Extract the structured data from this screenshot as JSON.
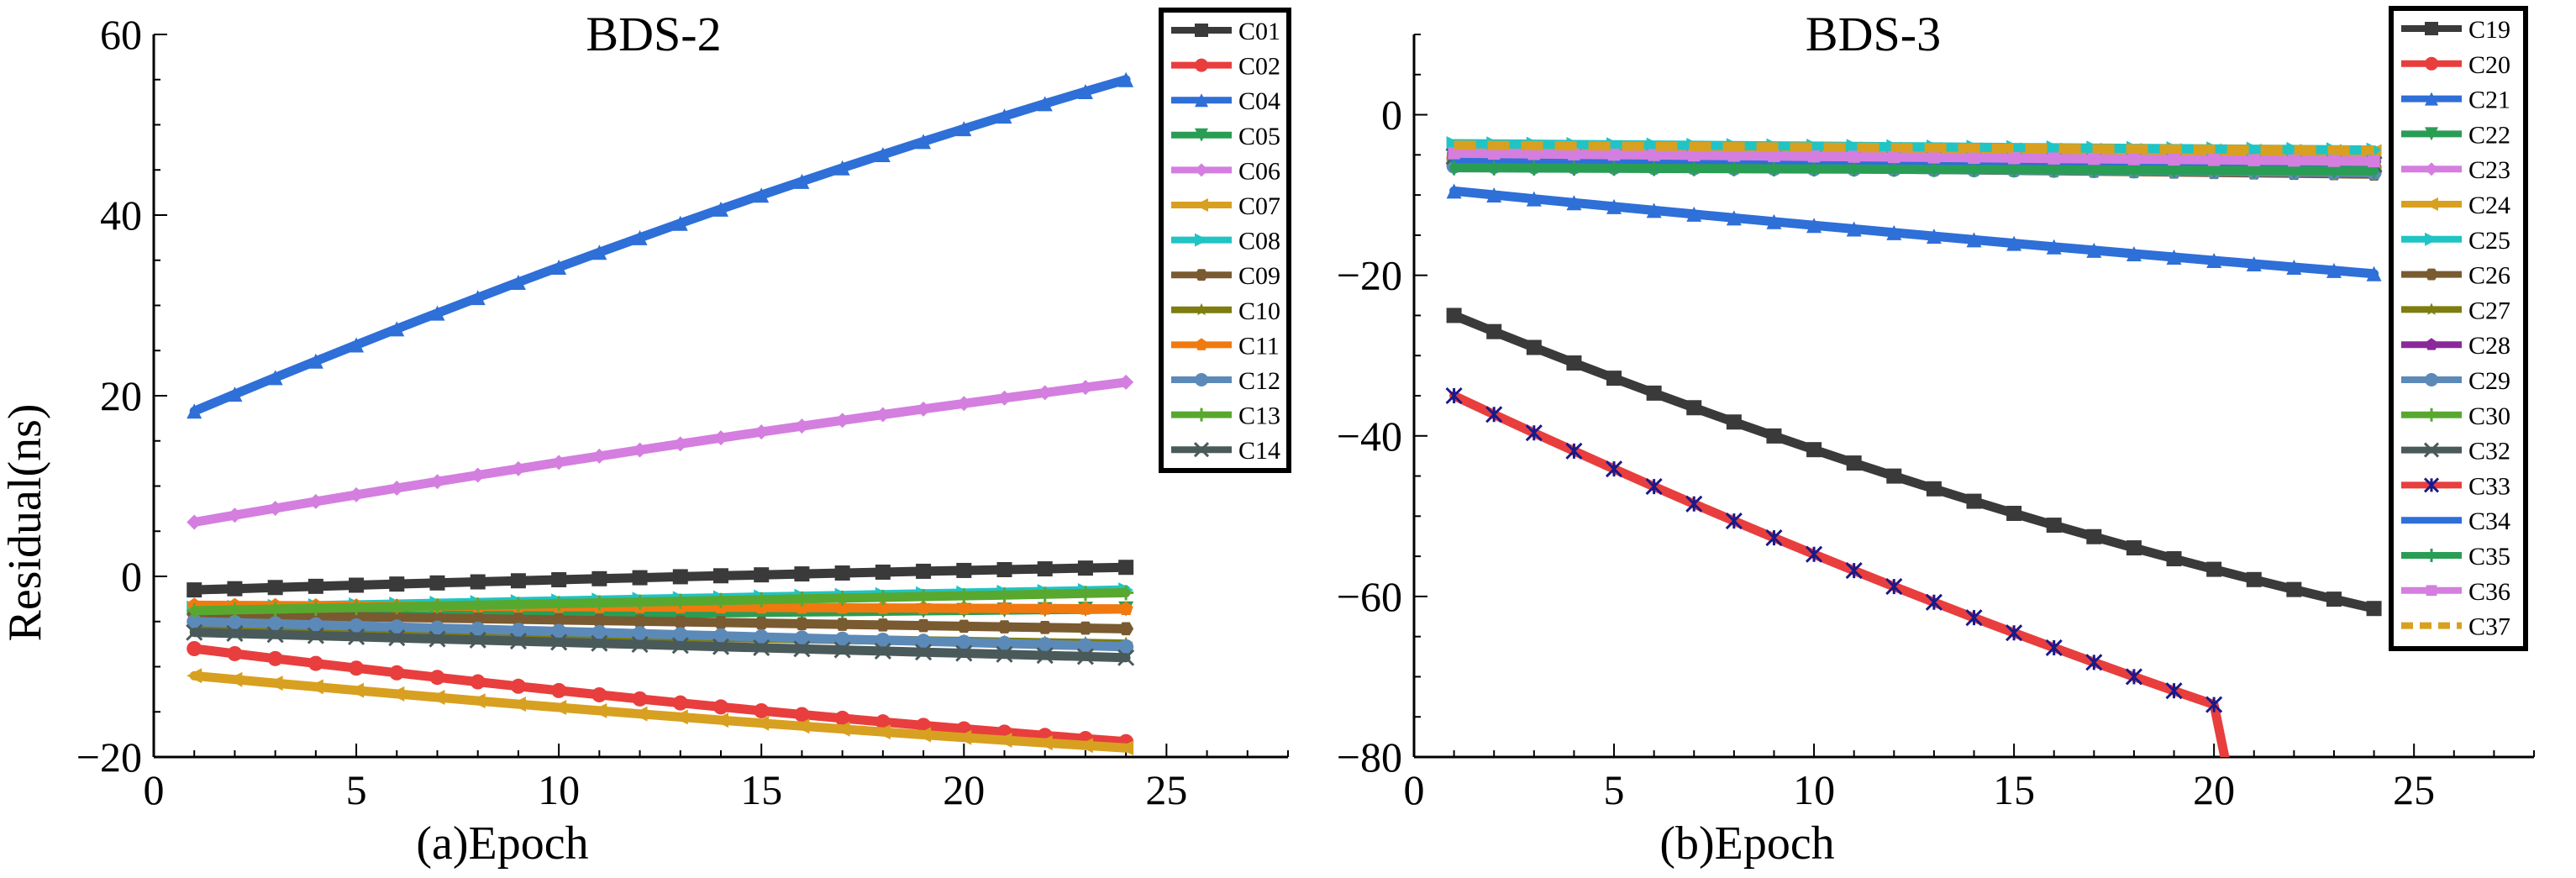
{
  "chart_data": [
    {
      "type": "line",
      "title": "BDS-2",
      "xlabel": "(a)Epoch",
      "ylabel": "Residual(ns)",
      "xlim": [
        0,
        28
      ],
      "ylim": [
        -20,
        60
      ],
      "xticks": [
        0,
        5,
        10,
        15,
        20,
        25
      ],
      "yticks": [
        -20,
        0,
        20,
        40,
        60
      ],
      "ytick_labels": [
        "−20",
        "0",
        "20",
        "40",
        "60"
      ],
      "legend_position": "top-right",
      "series": [
        {
          "name": "C01",
          "color": "#3a3a3a",
          "marker": "square",
          "start": -1.5,
          "end": 1.0,
          "curve": 0.25
        },
        {
          "name": "C02",
          "color": "#e83e3e",
          "marker": "circle",
          "start": -8.0,
          "end": -18.3,
          "curve": -0.25
        },
        {
          "name": "C04",
          "color": "#2e6fd8",
          "marker": "triangle-up",
          "start": 18.3,
          "end": 55.0,
          "curve": 0.18
        },
        {
          "name": "C05",
          "color": "#2a9d55",
          "marker": "triangle-down",
          "start": -4.6,
          "end": -3.6,
          "curve": 0
        },
        {
          "name": "C06",
          "color": "#d47ee0",
          "marker": "diamond",
          "start": 6.0,
          "end": 21.5,
          "curve": 0.15
        },
        {
          "name": "C07",
          "color": "#d8a020",
          "marker": "triangle-left",
          "start": -11.0,
          "end": -19.0,
          "curve": -0.2
        },
        {
          "name": "C08",
          "color": "#20c4c4",
          "marker": "triangle-right",
          "start": -3.5,
          "end": -1.5,
          "curve": 0
        },
        {
          "name": "C09",
          "color": "#7a5a30",
          "marker": "hexagon",
          "start": -4.2,
          "end": -5.8,
          "curve": 0
        },
        {
          "name": "C10",
          "color": "#7d7d10",
          "marker": "star",
          "start": -5.8,
          "end": -7.5,
          "curve": 0
        },
        {
          "name": "C11",
          "color": "#f07a10",
          "marker": "pentagon",
          "start": -3.2,
          "end": -3.6,
          "curve": 0
        },
        {
          "name": "C12",
          "color": "#5c8ab8",
          "marker": "sphere",
          "start": -5.0,
          "end": -7.8,
          "curve": 0
        },
        {
          "name": "C13",
          "color": "#58a830",
          "marker": "plus",
          "start": -3.8,
          "end": -1.8,
          "curve": 0
        },
        {
          "name": "C14",
          "color": "#4a5a5a",
          "marker": "x",
          "start": -6.2,
          "end": -9.0,
          "curve": 0
        }
      ]
    },
    {
      "type": "line",
      "title": "BDS-3",
      "xlabel": "(b)Epoch",
      "ylabel": "",
      "xlim": [
        0,
        28
      ],
      "ylim": [
        -80,
        10
      ],
      "xticks": [
        0,
        5,
        10,
        15,
        20,
        25
      ],
      "yticks": [
        -80,
        -60,
        -40,
        -20,
        0
      ],
      "ytick_labels": [
        "−80",
        "−60",
        "−40",
        "−20",
        "0"
      ],
      "legend_position": "top-right",
      "series": [
        {
          "name": "C19",
          "color": "#3a3a3a",
          "marker": "square",
          "start": -25.0,
          "end": -61.5,
          "curve": -0.28
        },
        {
          "name": "C20",
          "color": "#e83e3e",
          "marker": "circle",
          "start": -5.4,
          "end": -6.6,
          "curve": 0
        },
        {
          "name": "C21",
          "color": "#2e6fd8",
          "marker": "triangle-up",
          "start": -9.5,
          "end": -19.8,
          "curve": -0.1
        },
        {
          "name": "C22",
          "color": "#2a9d55",
          "marker": "triangle-down",
          "start": -5.8,
          "end": -6.8,
          "curve": 0
        },
        {
          "name": "C23",
          "color": "#d47ee0",
          "marker": "diamond",
          "start": -4.2,
          "end": -5.0,
          "curve": 0
        },
        {
          "name": "C24",
          "color": "#d8a020",
          "marker": "triangle-left",
          "start": -4.0,
          "end": -4.6,
          "curve": 0
        },
        {
          "name": "C25",
          "color": "#20c4c4",
          "marker": "triangle-right",
          "start": -3.6,
          "end": -4.4,
          "curve": 0
        },
        {
          "name": "C26",
          "color": "#7a5a30",
          "marker": "hexagon",
          "start": -6.2,
          "end": -7.4,
          "curve": 0
        },
        {
          "name": "C27",
          "color": "#7d7d10",
          "marker": "star",
          "start": -6.0,
          "end": -7.0,
          "curve": 0
        },
        {
          "name": "C28",
          "color": "#8a2a9a",
          "marker": "pentagon",
          "start": -5.0,
          "end": -6.0,
          "curve": 0
        },
        {
          "name": "C29",
          "color": "#5c8ab8",
          "marker": "sphere",
          "start": -6.4,
          "end": -7.2,
          "curve": 0
        },
        {
          "name": "C30",
          "color": "#58a830",
          "marker": "plus",
          "start": -5.6,
          "end": -6.6,
          "curve": 0
        },
        {
          "name": "C32",
          "color": "#4a5a5a",
          "marker": "x",
          "start": -5.2,
          "end": -6.2,
          "curve": 0
        },
        {
          "name": "C33",
          "color": "#e83e3e",
          "marker": "asterisk",
          "start": -35.0,
          "end": -80.0,
          "curve": -0.2,
          "marker_color": "#1a1a8a",
          "xmax": 20
        },
        {
          "name": "C34",
          "color": "#2e6fd8",
          "marker": "none",
          "start": -5.5,
          "end": -6.3,
          "curve": 0
        },
        {
          "name": "C35",
          "color": "#2a9d55",
          "marker": "vline",
          "start": -6.6,
          "end": -7.0,
          "curve": 0
        },
        {
          "name": "C36",
          "color": "#d47ee0",
          "marker": "square-small",
          "start": -4.8,
          "end": -5.8,
          "curve": 0
        },
        {
          "name": "C37",
          "color": "#d8a020",
          "marker": "dashed",
          "start": -3.8,
          "end": -4.4,
          "curve": 0,
          "dashed": true
        }
      ]
    }
  ]
}
